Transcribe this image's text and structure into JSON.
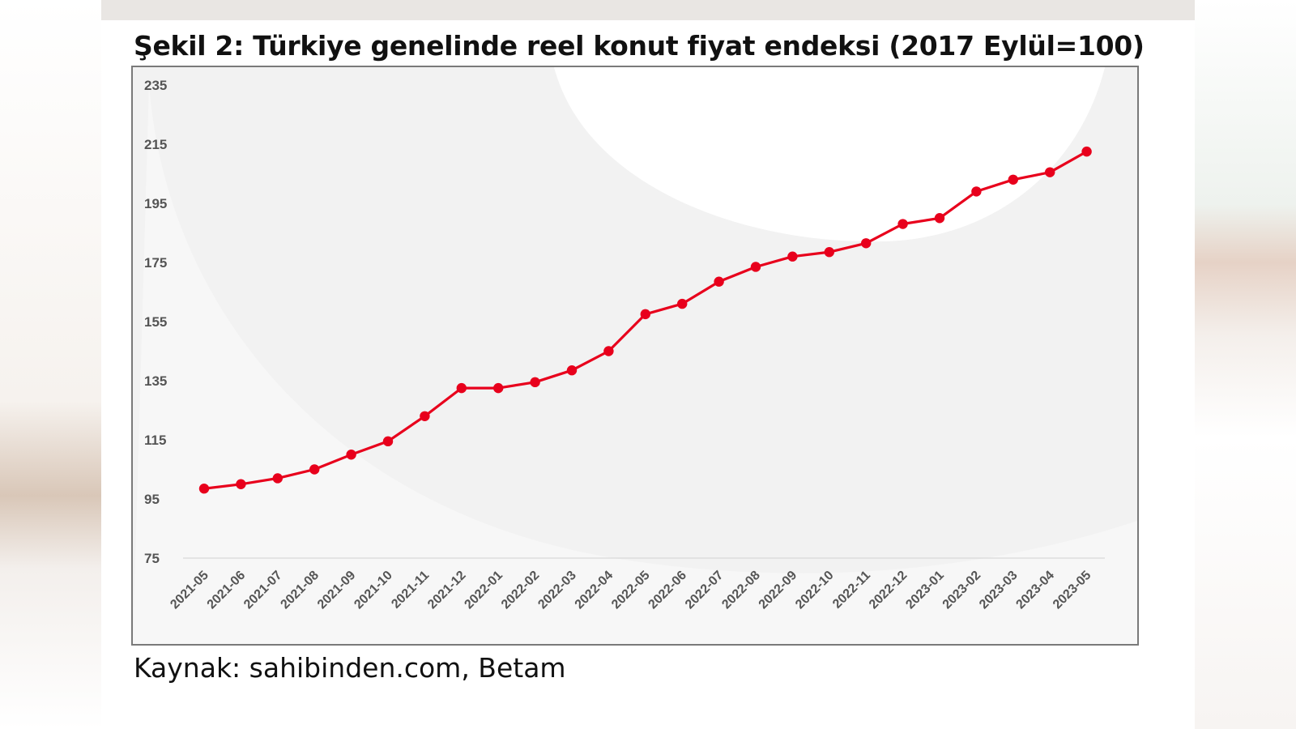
{
  "chart_data": {
    "type": "line",
    "title": "Şekil 2: Türkiye genelinde reel konut fiyat endeksi (2017 Eylül=100)",
    "source": "Kaynak: sahibinden.com, Betam",
    "xlabel": "",
    "ylabel": "",
    "ylim": [
      75,
      235
    ],
    "yticks": [
      75,
      95,
      115,
      135,
      155,
      175,
      195,
      215,
      235
    ],
    "grid": false,
    "legend": "none",
    "line_color": "#e8001c",
    "categories": [
      "2021-05",
      "2021-06",
      "2021-07",
      "2021-08",
      "2021-09",
      "2021-10",
      "2021-11",
      "2021-12",
      "2022-01",
      "2022-02",
      "2022-03",
      "2022-04",
      "2022-05",
      "2022-06",
      "2022-07",
      "2022-08",
      "2022-09",
      "2022-10",
      "2022-11",
      "2022-12",
      "2023-01",
      "2023-02",
      "2023-03",
      "2023-04",
      "2023-05"
    ],
    "series": [
      {
        "values": [
          98.5,
          100,
          102,
          105,
          110,
          114.5,
          123,
          132.5,
          132.5,
          134.5,
          138.5,
          145,
          157.5,
          161,
          168.5,
          173.5,
          177,
          178.5,
          181.5,
          188,
          190,
          199,
          203,
          205.5,
          212.5
        ]
      }
    ]
  }
}
